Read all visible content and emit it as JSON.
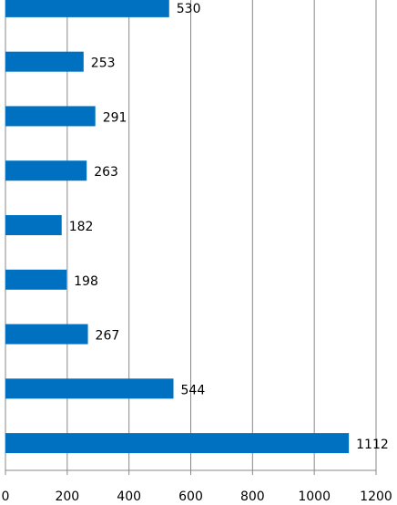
{
  "chart_data": {
    "type": "bar",
    "orientation": "horizontal",
    "categories": [
      null,
      null,
      null,
      null,
      null,
      null,
      null,
      null,
      null
    ],
    "values": [
      530,
      253,
      291,
      263,
      182,
      198,
      267,
      544,
      1112
    ],
    "color": "#0070c0",
    "xlim": [
      0,
      1200
    ],
    "xticks": [
      0,
      200,
      400,
      600,
      800,
      1000,
      1200
    ],
    "grid": true
  }
}
